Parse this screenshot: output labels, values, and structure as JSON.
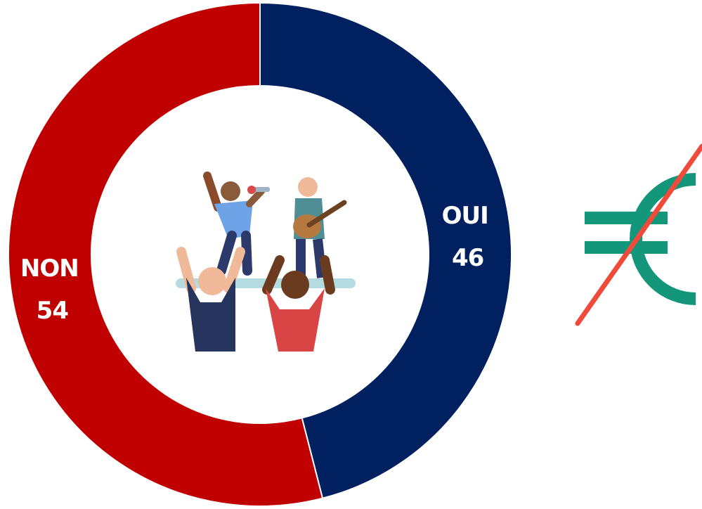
{
  "chart_data": {
    "type": "donut",
    "categories": [
      "OUI",
      "NON"
    ],
    "values": [
      46,
      54
    ],
    "colors": [
      "#002060",
      "#c00000"
    ]
  }
}
